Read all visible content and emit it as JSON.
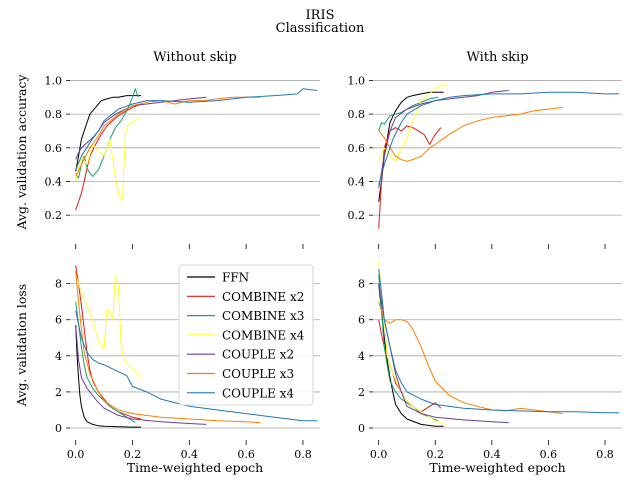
{
  "figure": {
    "suptitle_line1": "IRIS",
    "suptitle_line2": "Classification"
  },
  "chart_data": [
    {
      "type": "line",
      "title": "Without skip",
      "xlabel": "",
      "ylabel": "Avg. validation accuracy",
      "xlim": [
        -0.02,
        0.86
      ],
      "ylim": [
        0.1,
        1.05
      ],
      "yticks": [
        0.2,
        0.4,
        0.6,
        0.8,
        1.0
      ],
      "xticks": [
        0.0,
        0.2,
        0.4,
        0.6,
        0.8
      ],
      "show_x_tick_labels": false,
      "grid": "horizontal",
      "series": [
        {
          "name": "FFN",
          "color": "#000000",
          "x": [
            0.0,
            0.01,
            0.02,
            0.03,
            0.04,
            0.05,
            0.07,
            0.09,
            0.11,
            0.13,
            0.15,
            0.18,
            0.2,
            0.23
          ],
          "y": [
            0.46,
            0.55,
            0.65,
            0.7,
            0.75,
            0.8,
            0.84,
            0.88,
            0.89,
            0.9,
            0.9,
            0.91,
            0.91,
            0.91
          ]
        },
        {
          "name": "COMBINE x2",
          "color": "#e31a1c",
          "x": [
            0.0,
            0.01,
            0.02,
            0.03,
            0.04,
            0.05,
            0.07,
            0.09,
            0.11,
            0.13,
            0.15,
            0.18,
            0.2,
            0.23
          ],
          "y": [
            0.23,
            0.28,
            0.33,
            0.4,
            0.48,
            0.55,
            0.62,
            0.68,
            0.73,
            0.76,
            0.79,
            0.82,
            0.84,
            0.86
          ]
        },
        {
          "name": "COMBINE x3",
          "color": "#1b9e77",
          "x": [
            0.0,
            0.01,
            0.02,
            0.03,
            0.04,
            0.05,
            0.06,
            0.08,
            0.1,
            0.12,
            0.14,
            0.16,
            0.18,
            0.2,
            0.21,
            0.22
          ],
          "y": [
            0.45,
            0.42,
            0.5,
            0.55,
            0.48,
            0.45,
            0.43,
            0.47,
            0.55,
            0.65,
            0.72,
            0.76,
            0.82,
            0.9,
            0.95,
            0.9
          ]
        },
        {
          "name": "COMBINE x4",
          "color": "#ffff33",
          "x": [
            0.0,
            0.02,
            0.04,
            0.06,
            0.08,
            0.1,
            0.12,
            0.14,
            0.155,
            0.165,
            0.175,
            0.185,
            0.2,
            0.23
          ],
          "y": [
            0.4,
            0.55,
            0.5,
            0.62,
            0.58,
            0.55,
            0.65,
            0.42,
            0.3,
            0.3,
            0.68,
            0.74,
            0.75,
            0.78
          ]
        },
        {
          "name": "COUPLE x2",
          "color": "#6a3d9a",
          "x": [
            0.0,
            0.01,
            0.02,
            0.04,
            0.06,
            0.08,
            0.1,
            0.14,
            0.2,
            0.3,
            0.4,
            0.46
          ],
          "y": [
            0.53,
            0.57,
            0.6,
            0.63,
            0.66,
            0.7,
            0.75,
            0.8,
            0.85,
            0.87,
            0.89,
            0.9
          ]
        },
        {
          "name": "COUPLE x3",
          "color": "#ff7f00",
          "x": [
            0.0,
            0.02,
            0.05,
            0.08,
            0.1,
            0.15,
            0.2,
            0.25,
            0.3,
            0.35,
            0.4,
            0.45,
            0.5,
            0.55,
            0.6,
            0.65
          ],
          "y": [
            0.43,
            0.5,
            0.6,
            0.67,
            0.73,
            0.8,
            0.85,
            0.87,
            0.88,
            0.86,
            0.88,
            0.88,
            0.89,
            0.9,
            0.9,
            0.9
          ]
        },
        {
          "name": "COUPLE x4",
          "color": "#1f78b4",
          "x": [
            0.0,
            0.02,
            0.05,
            0.08,
            0.1,
            0.15,
            0.2,
            0.25,
            0.3,
            0.4,
            0.5,
            0.6,
            0.7,
            0.78,
            0.8,
            0.85
          ],
          "y": [
            0.47,
            0.55,
            0.63,
            0.7,
            0.76,
            0.83,
            0.86,
            0.88,
            0.88,
            0.87,
            0.88,
            0.9,
            0.91,
            0.92,
            0.95,
            0.94
          ]
        }
      ]
    },
    {
      "type": "line",
      "title": "With skip",
      "xlabel": "",
      "ylabel": "",
      "xlim": [
        -0.02,
        0.86
      ],
      "ylim": [
        0.1,
        1.05
      ],
      "yticks": [
        0.2,
        0.4,
        0.6,
        0.8,
        1.0
      ],
      "xticks": [
        0.0,
        0.2,
        0.4,
        0.6,
        0.8
      ],
      "show_x_tick_labels": false,
      "grid": "horizontal",
      "series": [
        {
          "name": "FFN",
          "color": "#000000",
          "x": [
            0.0,
            0.01,
            0.02,
            0.03,
            0.04,
            0.06,
            0.08,
            0.1,
            0.12,
            0.15,
            0.18,
            0.2,
            0.23
          ],
          "y": [
            0.28,
            0.4,
            0.55,
            0.65,
            0.75,
            0.82,
            0.87,
            0.9,
            0.91,
            0.92,
            0.93,
            0.93,
            0.93
          ]
        },
        {
          "name": "COMBINE x2",
          "color": "#e31a1c",
          "x": [
            0.0,
            0.01,
            0.02,
            0.04,
            0.06,
            0.08,
            0.1,
            0.12,
            0.14,
            0.16,
            0.18,
            0.2,
            0.22
          ],
          "y": [
            0.12,
            0.4,
            0.6,
            0.7,
            0.72,
            0.7,
            0.73,
            0.72,
            0.7,
            0.68,
            0.62,
            0.68,
            0.72
          ]
        },
        {
          "name": "COMBINE x3",
          "color": "#1b9e77",
          "x": [
            0.0,
            0.01,
            0.02,
            0.04,
            0.06,
            0.08,
            0.1,
            0.12,
            0.15,
            0.18,
            0.21
          ],
          "y": [
            0.7,
            0.75,
            0.74,
            0.79,
            0.8,
            0.81,
            0.83,
            0.85,
            0.87,
            0.89,
            0.9
          ]
        },
        {
          "name": "COMBINE x4",
          "color": "#ffff33",
          "x": [
            0.0,
            0.02,
            0.04,
            0.06,
            0.08,
            0.1,
            0.12,
            0.15,
            0.18,
            0.2,
            0.22,
            0.24
          ],
          "y": [
            0.52,
            0.6,
            0.55,
            0.52,
            0.6,
            0.65,
            0.75,
            0.88,
            0.92,
            0.95,
            0.97,
            0.98
          ]
        },
        {
          "name": "COUPLE x2",
          "color": "#6a3d9a",
          "x": [
            0.0,
            0.02,
            0.04,
            0.06,
            0.1,
            0.15,
            0.2,
            0.25,
            0.3,
            0.35,
            0.4,
            0.46
          ],
          "y": [
            0.36,
            0.55,
            0.7,
            0.78,
            0.83,
            0.86,
            0.88,
            0.89,
            0.9,
            0.91,
            0.93,
            0.94
          ]
        },
        {
          "name": "COUPLE x3",
          "color": "#ff7f00",
          "x": [
            0.0,
            0.02,
            0.04,
            0.06,
            0.08,
            0.1,
            0.12,
            0.15,
            0.18,
            0.2,
            0.25,
            0.3,
            0.35,
            0.4,
            0.45,
            0.5,
            0.55,
            0.6,
            0.65
          ],
          "y": [
            0.7,
            0.66,
            0.6,
            0.55,
            0.53,
            0.52,
            0.53,
            0.55,
            0.6,
            0.62,
            0.68,
            0.73,
            0.76,
            0.78,
            0.79,
            0.8,
            0.82,
            0.83,
            0.84
          ]
        },
        {
          "name": "COUPLE x4",
          "color": "#1f78b4",
          "x": [
            0.0,
            0.02,
            0.05,
            0.08,
            0.1,
            0.15,
            0.2,
            0.25,
            0.3,
            0.4,
            0.5,
            0.6,
            0.7,
            0.8,
            0.85
          ],
          "y": [
            0.38,
            0.5,
            0.65,
            0.75,
            0.8,
            0.85,
            0.88,
            0.9,
            0.91,
            0.92,
            0.92,
            0.93,
            0.93,
            0.92,
            0.92
          ]
        }
      ]
    },
    {
      "type": "line",
      "title": "",
      "xlabel": "Time-weighted epoch",
      "ylabel": "Avg. validation loss",
      "xlim": [
        -0.02,
        0.86
      ],
      "ylim": [
        0.0,
        9.2
      ],
      "yticks": [
        0,
        2,
        4,
        6,
        8
      ],
      "xticks": [
        0.0,
        0.2,
        0.4,
        0.6,
        0.8
      ],
      "show_x_tick_labels": true,
      "grid": "horizontal",
      "legend": "top-right",
      "series": [
        {
          "name": "FFN",
          "color": "#000000",
          "x": [
            0.0,
            0.005,
            0.01,
            0.015,
            0.02,
            0.03,
            0.04,
            0.06,
            0.08,
            0.1,
            0.15,
            0.2,
            0.23
          ],
          "y": [
            5.7,
            4.0,
            2.8,
            1.8,
            1.2,
            0.6,
            0.35,
            0.2,
            0.12,
            0.1,
            0.07,
            0.05,
            0.05
          ]
        },
        {
          "name": "COMBINE x2",
          "color": "#e31a1c",
          "x": [
            0.0,
            0.01,
            0.02,
            0.03,
            0.04,
            0.05,
            0.06,
            0.08,
            0.1,
            0.12,
            0.15,
            0.2,
            0.23
          ],
          "y": [
            9.0,
            8.0,
            6.8,
            5.5,
            4.2,
            3.2,
            2.6,
            2.0,
            1.6,
            1.2,
            0.9,
            0.6,
            0.5
          ]
        },
        {
          "name": "COMBINE x3",
          "color": "#1b9e77",
          "x": [
            0.0,
            0.01,
            0.02,
            0.03,
            0.04,
            0.06,
            0.08,
            0.1,
            0.12,
            0.15,
            0.18,
            0.21
          ],
          "y": [
            7.0,
            5.8,
            4.5,
            3.5,
            2.8,
            2.2,
            1.8,
            1.5,
            1.2,
            0.9,
            0.6,
            0.3
          ]
        },
        {
          "name": "COMBINE x4",
          "color": "#ffff33",
          "x": [
            0.0,
            0.02,
            0.04,
            0.06,
            0.08,
            0.1,
            0.11,
            0.12,
            0.13,
            0.14,
            0.15,
            0.16,
            0.17,
            0.19,
            0.21,
            0.23
          ],
          "y": [
            8.5,
            7.5,
            6.8,
            6.0,
            4.8,
            4.4,
            6.6,
            6.5,
            6.0,
            8.5,
            8.0,
            4.6,
            3.8,
            3.4,
            3.2,
            2.8
          ]
        },
        {
          "name": "COUPLE x2",
          "color": "#6a3d9a",
          "x": [
            0.0,
            0.01,
            0.02,
            0.04,
            0.06,
            0.08,
            0.1,
            0.15,
            0.2,
            0.3,
            0.4,
            0.46
          ],
          "y": [
            5.7,
            3.8,
            2.8,
            2.2,
            1.8,
            1.4,
            1.1,
            0.7,
            0.5,
            0.35,
            0.25,
            0.2
          ]
        },
        {
          "name": "COUPLE x3",
          "color": "#ff7f00",
          "x": [
            0.0,
            0.01,
            0.02,
            0.03,
            0.05,
            0.08,
            0.1,
            0.15,
            0.2,
            0.3,
            0.4,
            0.5,
            0.6,
            0.65
          ],
          "y": [
            8.7,
            7.0,
            5.5,
            4.2,
            3.0,
            2.0,
            1.5,
            1.0,
            0.8,
            0.6,
            0.5,
            0.4,
            0.35,
            0.3
          ]
        },
        {
          "name": "COUPLE x4",
          "color": "#1f78b4",
          "x": [
            0.0,
            0.02,
            0.04,
            0.06,
            0.08,
            0.1,
            0.14,
            0.18,
            0.2,
            0.25,
            0.3,
            0.4,
            0.5,
            0.6,
            0.7,
            0.8,
            0.85
          ],
          "y": [
            6.5,
            5.0,
            4.2,
            3.8,
            3.6,
            3.5,
            3.2,
            2.9,
            2.3,
            2.0,
            1.6,
            1.2,
            1.0,
            0.8,
            0.6,
            0.4,
            0.4
          ]
        }
      ]
    },
    {
      "type": "line",
      "title": "",
      "xlabel": "Time-weighted epoch",
      "ylabel": "",
      "xlim": [
        -0.02,
        0.86
      ],
      "ylim": [
        0.0,
        9.2
      ],
      "yticks": [
        0,
        2,
        4,
        6,
        8
      ],
      "xticks": [
        0.0,
        0.2,
        0.4,
        0.6,
        0.8
      ],
      "show_x_tick_labels": true,
      "grid": "horizontal",
      "series": [
        {
          "name": "FFN",
          "color": "#000000",
          "x": [
            0.0,
            0.01,
            0.02,
            0.03,
            0.04,
            0.05,
            0.06,
            0.08,
            0.1,
            0.15,
            0.2,
            0.23
          ],
          "y": [
            8.0,
            6.5,
            5.0,
            3.8,
            2.8,
            2.0,
            1.3,
            0.8,
            0.5,
            0.2,
            0.1,
            0.1
          ]
        },
        {
          "name": "COMBINE x2",
          "color": "#e31a1c",
          "x": [
            0.0,
            0.01,
            0.02,
            0.04,
            0.06,
            0.08,
            0.1,
            0.12,
            0.15,
            0.18,
            0.2,
            0.22
          ],
          "y": [
            6.0,
            5.2,
            4.5,
            3.5,
            2.5,
            2.0,
            1.5,
            1.2,
            0.9,
            1.2,
            1.4,
            1.1
          ]
        },
        {
          "name": "COMBINE x3",
          "color": "#1b9e77",
          "x": [
            0.0,
            0.01,
            0.02,
            0.03,
            0.04,
            0.06,
            0.08,
            0.1,
            0.12,
            0.15,
            0.18,
            0.21
          ],
          "y": [
            8.5,
            6.5,
            4.5,
            3.5,
            2.6,
            2.0,
            1.6,
            1.4,
            1.2,
            0.8,
            0.6,
            0.4
          ]
        },
        {
          "name": "COMBINE x4",
          "color": "#ffff33",
          "x": [
            0.0,
            0.01,
            0.02,
            0.03,
            0.05,
            0.08,
            0.1,
            0.12,
            0.15,
            0.18,
            0.2,
            0.22,
            0.24
          ],
          "y": [
            9.2,
            7.5,
            6.0,
            4.0,
            3.0,
            2.0,
            1.5,
            1.2,
            0.9,
            0.6,
            0.4,
            0.3,
            0.2
          ]
        },
        {
          "name": "COUPLE x2",
          "color": "#6a3d9a",
          "x": [
            0.0,
            0.01,
            0.02,
            0.04,
            0.06,
            0.08,
            0.1,
            0.15,
            0.2,
            0.3,
            0.4,
            0.46
          ],
          "y": [
            8.0,
            7.0,
            6.0,
            4.5,
            3.0,
            2.0,
            1.2,
            0.8,
            0.6,
            0.45,
            0.35,
            0.3
          ]
        },
        {
          "name": "COUPLE x3",
          "color": "#ff7f00",
          "x": [
            0.0,
            0.02,
            0.04,
            0.06,
            0.08,
            0.1,
            0.12,
            0.15,
            0.18,
            0.2,
            0.25,
            0.3,
            0.35,
            0.4,
            0.45,
            0.5,
            0.55,
            0.6,
            0.65
          ],
          "y": [
            7.0,
            6.0,
            5.8,
            6.0,
            6.0,
            5.9,
            5.5,
            4.5,
            3.3,
            2.6,
            1.8,
            1.4,
            1.2,
            1.0,
            0.95,
            1.1,
            1.0,
            0.9,
            0.8
          ]
        },
        {
          "name": "COUPLE x4",
          "color": "#1f78b4",
          "x": [
            0.0,
            0.01,
            0.02,
            0.04,
            0.06,
            0.08,
            0.1,
            0.15,
            0.2,
            0.3,
            0.4,
            0.5,
            0.6,
            0.7,
            0.8,
            0.85
          ],
          "y": [
            8.8,
            7.5,
            6.0,
            4.5,
            3.2,
            2.5,
            2.0,
            1.6,
            1.3,
            1.1,
            1.0,
            0.95,
            0.9,
            0.9,
            0.85,
            0.85
          ]
        }
      ]
    }
  ]
}
